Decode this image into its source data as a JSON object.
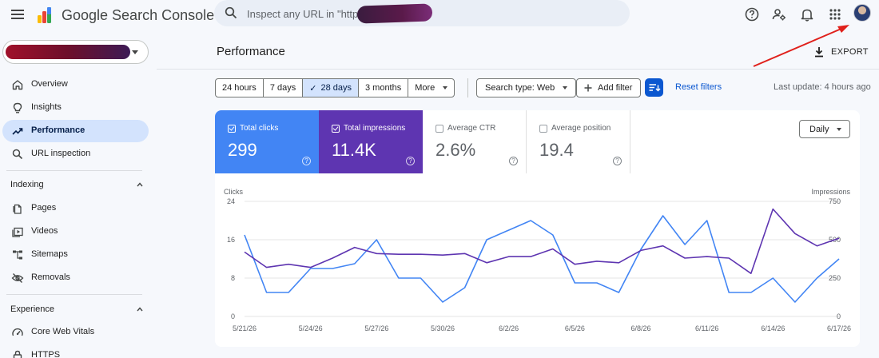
{
  "header": {
    "brand": "Google Search Console",
    "search_placeholder": "Inspect any URL in \"https://"
  },
  "sidebar": {
    "items": [
      {
        "label": "Overview",
        "icon": "home-icon"
      },
      {
        "label": "Insights",
        "icon": "lightbulb-icon"
      },
      {
        "label": "Performance",
        "icon": "trending-icon",
        "active": true
      },
      {
        "label": "URL inspection",
        "icon": "search-icon"
      }
    ],
    "indexing": {
      "title": "Indexing",
      "items": [
        {
          "label": "Pages",
          "icon": "pages-icon"
        },
        {
          "label": "Videos",
          "icon": "video-icon"
        },
        {
          "label": "Sitemaps",
          "icon": "sitemap-icon"
        },
        {
          "label": "Removals",
          "icon": "eye-off-icon"
        }
      ]
    },
    "experience": {
      "title": "Experience",
      "items": [
        {
          "label": "Core Web Vitals",
          "icon": "gauge-icon"
        },
        {
          "label": "HTTPS",
          "icon": "lock-icon"
        }
      ]
    }
  },
  "main": {
    "title": "Performance",
    "export_label": "EXPORT",
    "date_ranges": [
      "24 hours",
      "7 days",
      "28 days",
      "3 months",
      "More"
    ],
    "selected_range": "28 days",
    "search_type": "Search type: Web",
    "add_filter": "Add filter",
    "reset_filters": "Reset filters",
    "last_update": "Last update: 4 hours ago",
    "granularity": "Daily"
  },
  "metrics": [
    {
      "label": "Total clicks",
      "value": "299",
      "checked": true,
      "color": "#4285f4"
    },
    {
      "label": "Total impressions",
      "value": "11.4K",
      "checked": true,
      "color": "#5e35b1"
    },
    {
      "label": "Average CTR",
      "value": "2.6%",
      "checked": false
    },
    {
      "label": "Average position",
      "value": "19.4",
      "checked": false
    }
  ],
  "chart_data": {
    "type": "line",
    "left_axis_label": "Clicks",
    "right_axis_label": "Impressions",
    "left_ticks": [
      24,
      16,
      8,
      0
    ],
    "right_ticks": [
      750,
      500,
      250,
      0
    ],
    "ylim_left": [
      0,
      24
    ],
    "ylim_right": [
      0,
      750
    ],
    "x": [
      "5/21/26",
      "5/22/26",
      "5/23/26",
      "5/24/26",
      "5/25/26",
      "5/26/26",
      "5/27/26",
      "5/28/26",
      "5/29/26",
      "5/30/26",
      "5/31/26",
      "6/1/26",
      "6/2/26",
      "6/3/26",
      "6/4/26",
      "6/5/26",
      "6/6/26",
      "6/7/26",
      "6/8/26",
      "6/9/26",
      "6/10/26",
      "6/11/26",
      "6/12/26",
      "6/13/26",
      "6/14/26",
      "6/15/26",
      "6/16/26",
      "6/17/26"
    ],
    "x_tick_labels": [
      "5/21/26",
      "5/24/26",
      "5/27/26",
      "5/30/26",
      "6/2/26",
      "6/5/26",
      "6/8/26",
      "6/11/26",
      "6/14/26",
      "6/17/26"
    ],
    "series": [
      {
        "name": "Clicks",
        "axis": "left",
        "color": "#4285f4",
        "values": [
          17,
          5,
          5,
          10,
          10,
          11,
          16,
          8,
          8,
          3,
          6,
          16,
          18,
          20,
          17,
          7,
          7,
          5,
          14,
          21,
          15,
          20,
          5,
          5,
          8,
          3,
          8,
          12
        ]
      },
      {
        "name": "Impressions",
        "axis": "right",
        "color": "#5e35b1",
        "values": [
          420,
          320,
          340,
          320,
          380,
          450,
          410,
          405,
          405,
          400,
          410,
          350,
          390,
          390,
          440,
          340,
          360,
          350,
          430,
          460,
          380,
          390,
          380,
          280,
          700,
          540,
          460,
          510
        ]
      }
    ]
  }
}
